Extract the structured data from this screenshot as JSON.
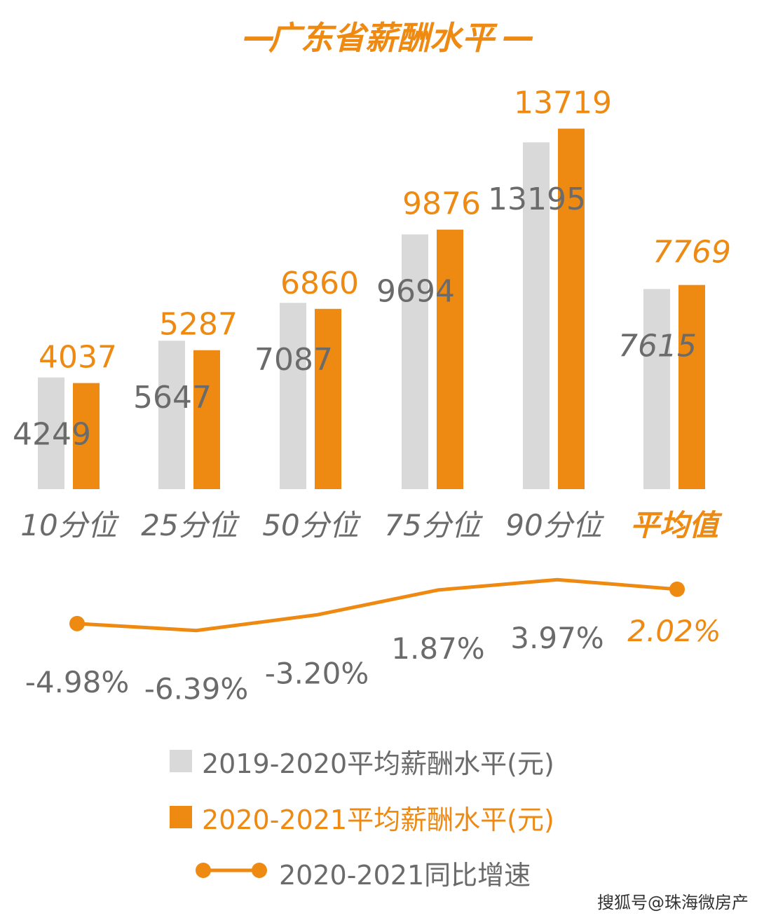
{
  "colors": {
    "orange": "#EE8A12",
    "gray_bar": "#D9D9D9",
    "gray_text": "#6B6B6B",
    "line": "#EE8A12"
  },
  "chart_data": {
    "type": "bar",
    "title": "广东省薪酬水平",
    "categories": [
      "10分位",
      "25分位",
      "50分位",
      "75分位",
      "90分位",
      "平均值"
    ],
    "series": [
      {
        "name": "2019-2020平均薪酬水平(元)",
        "values": [
          4249,
          5647,
          7087,
          9694,
          13195,
          7615
        ],
        "color": "#D9D9D9"
      },
      {
        "name": "2020-2021平均薪酬水平(元)",
        "values": [
          4037,
          5287,
          6860,
          9876,
          13719,
          7769
        ],
        "color": "#EE8A12"
      }
    ],
    "growth": {
      "name": "2020-2021同比增速",
      "values": [
        -4.98,
        -6.39,
        -3.2,
        1.87,
        3.97,
        2.02
      ],
      "labels": [
        "-4.98%",
        "-6.39%",
        "-3.20%",
        "1.87%",
        "3.97%",
        "2.02%"
      ]
    },
    "value_labels_2019": [
      "4249",
      "5647",
      "7087",
      "9694",
      "13195",
      "7615"
    ],
    "value_labels_2020": [
      "4037",
      "5287",
      "6860",
      "9876",
      "13719",
      "7769"
    ],
    "legend": {
      "item1": "2019-2020平均薪酬水平(元)",
      "item2": "2020-2021平均薪酬水平(元)",
      "item3": "2020-2021同比增速"
    }
  },
  "title_dash": "—",
  "watermark": "搜狐号@珠海微房产"
}
